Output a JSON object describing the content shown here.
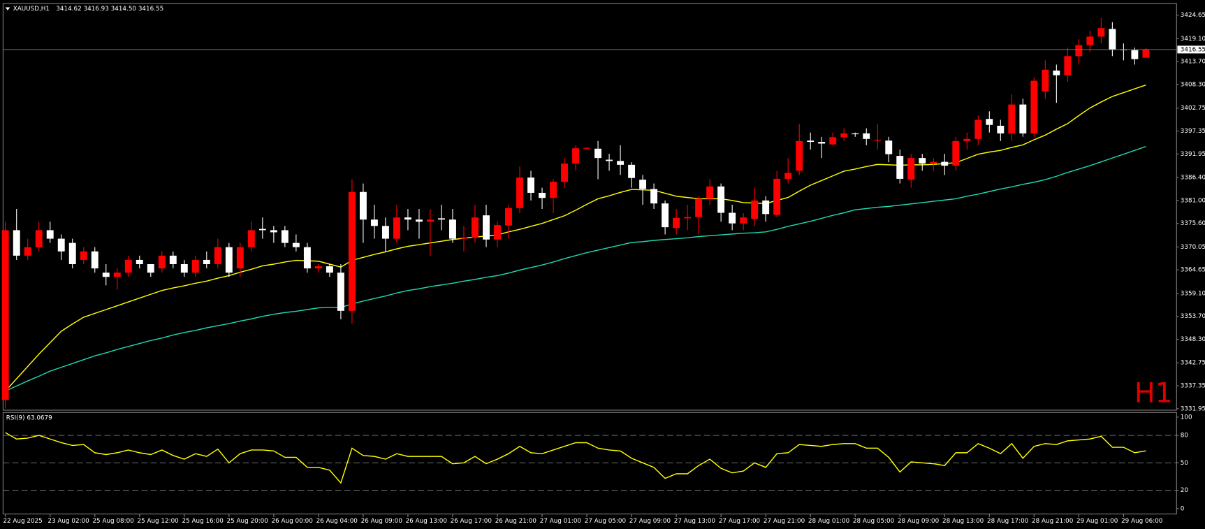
{
  "chart_data": [
    {
      "type": "candlestick",
      "title": "XAUUSD,H1",
      "subtitle": "3414.62 3416.93 3414.50 3416.55",
      "watermark": "H1",
      "categories": [
        "22 Aug 2025",
        null,
        null,
        null,
        "23 Aug 02:00",
        null,
        null,
        null,
        "25 Aug 08:00",
        null,
        null,
        null,
        "25 Aug 12:00",
        null,
        null,
        null,
        "25 Aug 16:00",
        null,
        null,
        null,
        "25 Aug 20:00",
        null,
        null,
        null,
        "26 Aug 00:00",
        null,
        null,
        null,
        "26 Aug 04:00",
        null,
        null,
        null,
        "26 Aug 09:00",
        null,
        null,
        null,
        "26 Aug 13:00",
        null,
        null,
        null,
        "26 Aug 17:00",
        null,
        null,
        null,
        "26 Aug 21:00",
        null,
        null,
        null,
        "27 Aug 01:00",
        null,
        null,
        null,
        "27 Aug 05:00",
        null,
        null,
        null,
        "27 Aug 09:00",
        null,
        null,
        null,
        "27 Aug 13:00",
        null,
        null,
        null,
        "27 Aug 17:00",
        null,
        null,
        null,
        "27 Aug 21:00",
        null,
        null,
        null,
        "28 Aug 01:00",
        null,
        null,
        null,
        "28 Aug 05:00",
        null,
        null,
        null,
        "28 Aug 09:00",
        null,
        null,
        null,
        "28 Aug 13:00",
        null,
        null,
        null,
        "28 Aug 17:00",
        null,
        null,
        null,
        "28 Aug 21:00",
        null,
        null,
        null,
        "29 Aug 01:00",
        null,
        null,
        null,
        "29 Aug 06:00",
        null,
        null
      ],
      "open": [
        3334,
        3374,
        3368,
        3370,
        3374,
        3372,
        3371,
        3367,
        3369,
        3364,
        3363,
        3364,
        3367,
        3366,
        3365,
        3368,
        3366,
        3364,
        3367,
        3366,
        3370,
        3365,
        3370,
        3374.3,
        3374,
        3374,
        3371,
        3370,
        3365,
        3365.5,
        3364,
        3355,
        3383,
        3376.5,
        3375,
        3372,
        3377,
        3376.5,
        3376,
        3376.8,
        3376.5,
        3372,
        3372.2,
        3377.5,
        3371.8,
        3375.1,
        3379.2,
        3386.4,
        3382.8,
        3381.6,
        3385.4,
        3389.7,
        3393.2,
        3393.2,
        3390.6,
        3390.3,
        3389.4,
        3385.9,
        3383.7,
        3380.3,
        3374.5,
        3376.8,
        3377.1,
        3381.4,
        3384.3,
        3378.1,
        3375.6,
        3376.7,
        3381,
        3377.6,
        3386.1,
        3388,
        3395.1,
        3394.8,
        3394.2,
        3395.9,
        3396.8,
        3396.8,
        3395.1,
        3395.1,
        3391.5,
        3385.9,
        3391,
        3389.7,
        3390.1,
        3389.2,
        3395,
        3395.5,
        3400.2,
        3398.6,
        3396.8,
        3403.6,
        3396.8,
        3406.7,
        3411.6,
        3410.5,
        3415,
        3417.6,
        3419.6,
        3421.4,
        3416.6,
        3416.4,
        3414.62
      ],
      "high": [
        3376,
        3379,
        3372,
        3376,
        3376,
        3373,
        3372,
        3370,
        3370,
        3366,
        3365,
        3368,
        3368,
        3366,
        3369,
        3369,
        3367,
        3368,
        3369,
        3372,
        3371,
        3371,
        3376,
        3377,
        3375,
        3375,
        3373,
        3371,
        3366,
        3366,
        3366,
        3386,
        3385,
        3380,
        3377,
        3380,
        3379,
        3379,
        3379,
        3380,
        3379,
        3375,
        3380,
        3380,
        3376,
        3380,
        3389,
        3388,
        3384,
        3386,
        3391,
        3394,
        3393.5,
        3395,
        3392,
        3394,
        3390,
        3387,
        3385,
        3381,
        3379,
        3380,
        3382,
        3386,
        3385,
        3380,
        3378,
        3384,
        3382,
        3388,
        3391,
        3399,
        3397,
        3396,
        3397,
        3398,
        3397,
        3398,
        3399,
        3396,
        3393,
        3392,
        3392,
        3391,
        3392,
        3396,
        3397,
        3401,
        3402,
        3400,
        3406,
        3405,
        3410,
        3414,
        3413,
        3417,
        3419,
        3421,
        3424,
        3423,
        3418,
        3417,
        3416.93
      ],
      "low": [
        3332,
        3367,
        3367,
        3369,
        3371,
        3367,
        3365,
        3366,
        3364,
        3361,
        3360,
        3363,
        3365,
        3363,
        3364,
        3365,
        3363,
        3363,
        3365,
        3365,
        3363,
        3363,
        3369,
        3372,
        3371,
        3370,
        3369,
        3364,
        3364,
        3363,
        3353,
        3352,
        3371,
        3372,
        3369,
        3371,
        3374,
        3372,
        3368,
        3374,
        3371,
        3369,
        3371,
        3370,
        3370,
        3372,
        3378,
        3381,
        3379,
        3378,
        3384,
        3388,
        3393,
        3386,
        3388,
        3387,
        3384,
        3380,
        3379,
        3373,
        3373,
        3374,
        3373,
        3380,
        3376,
        3374,
        3374,
        3375,
        3376,
        3377,
        3385,
        3387,
        3393,
        3391,
        3394,
        3395,
        3396,
        3394,
        3393,
        3390,
        3385,
        3384,
        3388,
        3388,
        3387,
        3388,
        3393,
        3394,
        3397,
        3395,
        3395,
        3396,
        3396,
        3405,
        3404,
        3409,
        3413,
        3416,
        3418,
        3415,
        3414,
        3413,
        3414.5
      ],
      "close": [
        3374,
        3368,
        3370,
        3374,
        3372,
        3369,
        3366,
        3369,
        3365,
        3363,
        3364,
        3367,
        3366,
        3364,
        3368,
        3366,
        3364,
        3367,
        3366,
        3370,
        3364,
        3370,
        3374,
        3374,
        3373.5,
        3371,
        3370,
        3365,
        3365.5,
        3364,
        3355,
        3383,
        3376.5,
        3375,
        3372,
        3377,
        3376.5,
        3376,
        3376.5,
        3376.5,
        3372,
        3372.3,
        3377,
        3371.8,
        3375.2,
        3379.2,
        3386.4,
        3382.8,
        3381.6,
        3385.4,
        3389.7,
        3393.3,
        3393.4,
        3391,
        3390.3,
        3389.4,
        3386.3,
        3383.7,
        3380.3,
        3374.7,
        3376.9,
        3377.1,
        3381.4,
        3384.3,
        3378.1,
        3375.6,
        3377,
        3381,
        3377.8,
        3386.1,
        3387.5,
        3395,
        3394.8,
        3394.4,
        3395.9,
        3396.8,
        3396.6,
        3395.5,
        3395.3,
        3391.9,
        3386.1,
        3391,
        3389.7,
        3390.1,
        3389.2,
        3395,
        3395.5,
        3400,
        3398.8,
        3396.8,
        3403.6,
        3396.8,
        3409.2,
        3411.8,
        3410.5,
        3415,
        3417.6,
        3419.6,
        3421.6,
        3416.5,
        3416.4,
        3414.3,
        3416.55
      ],
      "up_color": "#ff0000",
      "down_color": "#ffffff",
      "series": [
        {
          "color": "#ffff00",
          "values": [
            3336.1,
            3339,
            3341.9,
            3344.8,
            3347.5,
            3350.2,
            3351.9,
            3353.5,
            3354.4,
            3355.3,
            3356.2,
            3357.1,
            3358,
            3358.9,
            3359.8,
            3360.4,
            3360.9,
            3361.5,
            3362,
            3362.7,
            3363.3,
            3364.1,
            3364.8,
            3365.6,
            3366,
            3366.5,
            3366.9,
            3366.8,
            3366.7,
            3366,
            3365.3,
            3366.9,
            3367.6,
            3368.3,
            3368.9,
            3369.6,
            3370.2,
            3370.6,
            3371,
            3371.4,
            3371.8,
            3372.1,
            3372.4,
            3372.6,
            3372.9,
            3373.6,
            3374.2,
            3374.9,
            3375.6,
            3376.5,
            3377.4,
            3378.7,
            3380.1,
            3381.4,
            3382.1,
            3382.9,
            3383.6,
            3383.5,
            3383.4,
            3382.7,
            3382,
            3381.7,
            3381.4,
            3381.4,
            3381.4,
            3381,
            3380.5,
            3380.4,
            3380.3,
            3381,
            3381.7,
            3383.2,
            3384.6,
            3385.7,
            3386.8,
            3387.9,
            3388.4,
            3389,
            3389.5,
            3389.4,
            3389.3,
            3389.4,
            3389.4,
            3389.5,
            3389.7,
            3389.9,
            3390.9,
            3391.9,
            3392.4,
            3392.8,
            3393.5,
            3394.1,
            3395.3,
            3396.4,
            3397.8,
            3399.1,
            3401,
            3402.8,
            3404.2,
            3405.5,
            3406.4,
            3407.3,
            3408.2
          ]
        },
        {
          "color": "#20d8b0",
          "values": [
            3336.1,
            3337.3,
            3338.5,
            3339.6,
            3340.8,
            3341.7,
            3342.6,
            3343.5,
            3344.4,
            3345.1,
            3345.9,
            3346.6,
            3347.3,
            3348,
            3348.6,
            3349.3,
            3349.9,
            3350.4,
            3351,
            3351.5,
            3352,
            3352.6,
            3353.1,
            3353.7,
            3354.2,
            3354.6,
            3354.9,
            3355.3,
            3355.7,
            3355.8,
            3355.8,
            3356.6,
            3357.3,
            3357.9,
            3358.5,
            3359.2,
            3359.8,
            3360.2,
            3360.7,
            3361.1,
            3361.5,
            3362,
            3362.4,
            3362.9,
            3363.3,
            3363.9,
            3364.6,
            3365.2,
            3365.8,
            3366.5,
            3367.3,
            3368,
            3368.7,
            3369.3,
            3369.9,
            3370.5,
            3371.1,
            3371.3,
            3371.6,
            3371.8,
            3372,
            3372.2,
            3372.5,
            3372.7,
            3372.9,
            3373.1,
            3373.3,
            3373.4,
            3373.6,
            3374.2,
            3374.9,
            3375.5,
            3376.1,
            3376.8,
            3377.5,
            3378.1,
            3378.8,
            3379.1,
            3379.4,
            3379.6,
            3379.9,
            3380.2,
            3380.5,
            3380.8,
            3381.1,
            3381.4,
            3382,
            3382.5,
            3383.1,
            3383.7,
            3384.2,
            3384.8,
            3385.3,
            3385.9,
            3386.7,
            3387.6,
            3388.4,
            3389.2,
            3390.1,
            3391,
            3391.9,
            3392.8,
            3393.7
          ]
        }
      ],
      "bid": 3416.55,
      "ylim": [
        3331.6,
        3427.4
      ],
      "yticks": [
        3424.65,
        {
          "value": 3419.1,
          "label": "3419.10"
        },
        {
          "value": 3413.7,
          "label": "3413.70"
        },
        {
          "value": 3408.3,
          "label": "3408.30"
        },
        3402.75,
        3397.35,
        3391.95,
        {
          "value": 3386.4,
          "label": "3386.40"
        },
        {
          "value": 3381,
          "label": "3381.00"
        },
        {
          "value": 3375.6,
          "label": "3375.60"
        },
        3370.05,
        3364.65,
        {
          "value": 3359.1,
          "label": "3359.10"
        },
        {
          "value": 3353.7,
          "label": "3353.70"
        },
        {
          "value": 3348.3,
          "label": "3348.30"
        },
        3342.75,
        3337.35,
        3331.95
      ]
    },
    {
      "type": "line",
      "title": "RSI(9) 63.0679",
      "color": "#ffff00",
      "values": [
        83,
        76,
        77,
        80,
        76,
        72,
        69,
        70,
        61,
        59,
        61,
        64,
        61,
        59,
        64,
        58,
        54,
        60,
        57,
        65,
        50,
        60,
        64,
        64,
        63,
        56,
        56,
        45,
        45,
        42,
        28,
        66,
        58,
        57,
        54,
        60,
        57,
        57,
        57,
        57,
        49,
        50,
        57,
        49,
        54,
        60,
        68,
        61,
        60,
        64,
        68,
        72,
        72,
        66,
        64,
        63,
        55,
        50,
        45,
        33,
        38,
        38,
        47,
        54,
        44,
        39,
        41,
        50,
        45,
        60,
        61,
        70,
        69,
        68,
        70,
        71,
        71,
        66,
        66,
        56,
        40,
        51,
        50,
        49,
        47,
        61,
        61,
        71,
        66,
        60,
        71,
        55,
        68,
        71,
        70,
        74,
        75,
        76,
        79,
        67,
        67,
        61,
        63.0679
      ],
      "ylim": [
        -5.9,
        105
      ],
      "yticks": [
        100,
        80,
        50,
        20,
        0
      ],
      "levels": [
        80,
        50,
        20
      ]
    }
  ]
}
